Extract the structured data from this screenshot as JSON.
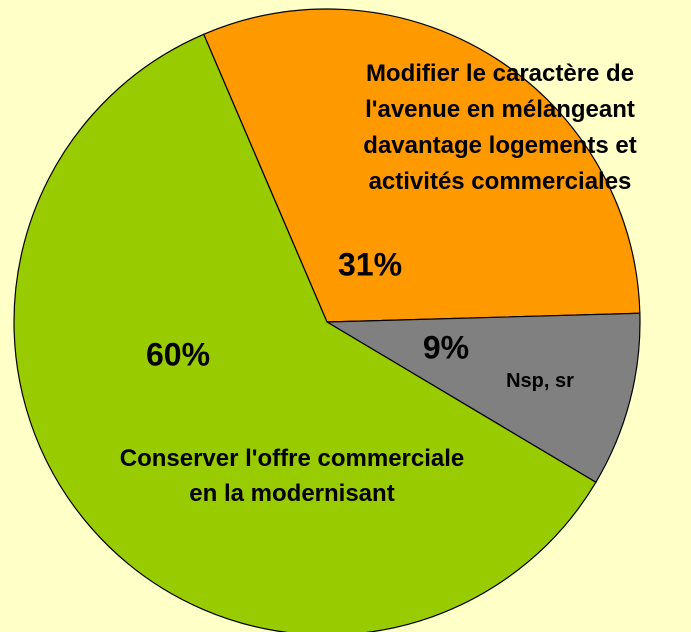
{
  "chart_data": {
    "type": "pie",
    "categories": [
      "Modifier le caractère de\nl'avenue en mélangeant\ndavantage logements et\nactivités commerciales",
      "Nsp, sr",
      "Conserver l'offre commerciale\nen la modernisant"
    ],
    "values": [
      31,
      9,
      60
    ],
    "value_labels": [
      "31%",
      "9%",
      "60%"
    ],
    "colors": [
      "#ff9900",
      "#808080",
      "#99cc00"
    ]
  }
}
